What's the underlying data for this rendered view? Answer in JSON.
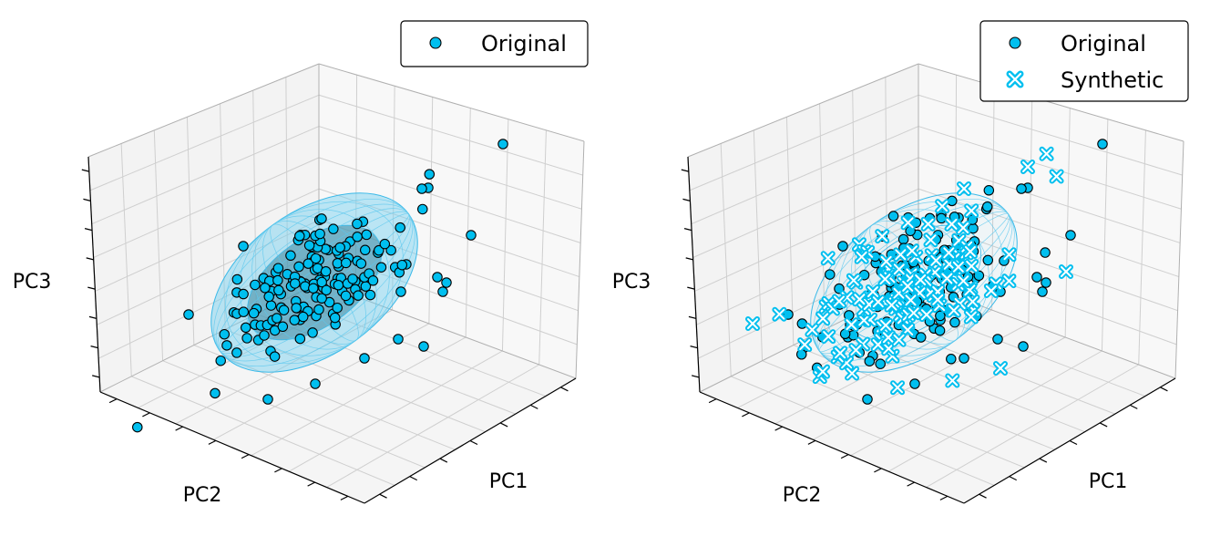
{
  "chart_data": [
    {
      "type": "scatter",
      "projection": "3d",
      "xlabel": "PC1",
      "ylabel": "PC2",
      "zlabel": "PC3",
      "grid": true,
      "legend_position": "top-right",
      "confidence_ellipsoids": 2,
      "series": [
        {
          "name": "Original",
          "marker": "circle",
          "color": "#00bfef",
          "edgecolor": "#000000"
        }
      ]
    },
    {
      "type": "scatter",
      "projection": "3d",
      "xlabel": "PC1",
      "ylabel": "PC2",
      "zlabel": "PC3",
      "grid": true,
      "legend_position": "top-right",
      "confidence_ellipsoids": 2,
      "series": [
        {
          "name": "Original",
          "marker": "circle",
          "color": "#00bfef",
          "edgecolor": "#000000"
        },
        {
          "name": "Synthetic",
          "marker": "x",
          "color": "#00bfef",
          "edgecolor": "#ffffff"
        }
      ]
    }
  ]
}
